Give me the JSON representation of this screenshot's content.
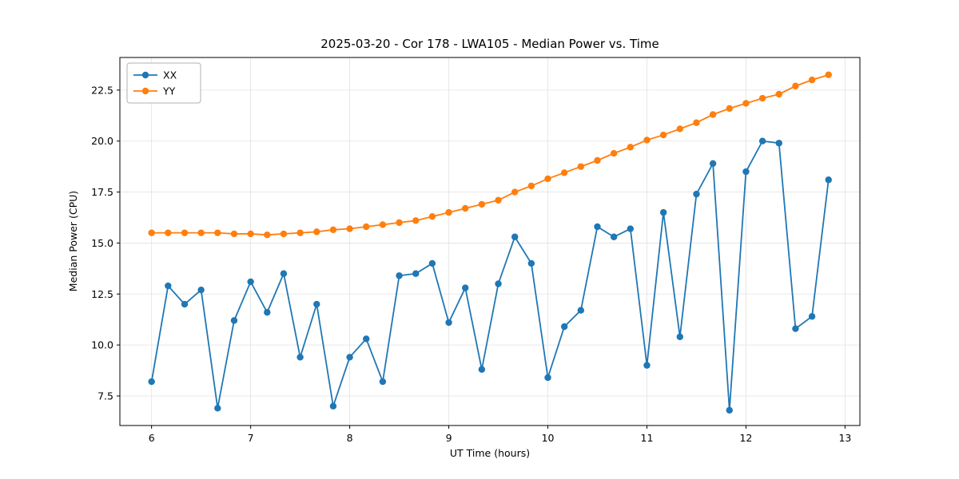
{
  "chart_data": {
    "type": "line",
    "title": "2025-03-20 - Cor 178 - LWA105 - Median Power vs. Time",
    "xlabel": "UT Time (hours)",
    "ylabel": "Median Power (CPU)",
    "xlim": [
      5.68,
      13.15
    ],
    "ylim": [
      6.05,
      24.1
    ],
    "xticks": [
      6,
      7,
      8,
      9,
      10,
      11,
      12,
      13
    ],
    "xtick_labels": [
      "6",
      "7",
      "8",
      "9",
      "10",
      "11",
      "12",
      "13"
    ],
    "yticks": [
      7.5,
      10.0,
      12.5,
      15.0,
      17.5,
      20.0,
      22.5
    ],
    "ytick_labels": [
      "7.5",
      "10.0",
      "12.5",
      "15.0",
      "17.5",
      "20.0",
      "22.5"
    ],
    "grid": true,
    "legend_position": "upper-left",
    "marker": "circle",
    "x": [
      6.0,
      6.1667,
      6.3333,
      6.5,
      6.6667,
      6.8333,
      7.0,
      7.1667,
      7.3333,
      7.5,
      7.6667,
      7.8333,
      8.0,
      8.1667,
      8.3333,
      8.5,
      8.6667,
      8.8333,
      9.0,
      9.1667,
      9.3333,
      9.5,
      9.6667,
      9.8333,
      10.0,
      10.1667,
      10.3333,
      10.5,
      10.6667,
      10.8333,
      11.0,
      11.1667,
      11.3333,
      11.5,
      11.6667,
      11.8333,
      12.0,
      12.1667,
      12.3333,
      12.5,
      12.6667,
      12.8333
    ],
    "series": [
      {
        "name": "XX",
        "color": "#1f77b4",
        "values": [
          8.2,
          12.9,
          12.0,
          12.7,
          6.9,
          11.2,
          13.1,
          11.6,
          13.5,
          9.4,
          12.0,
          7.0,
          9.4,
          10.3,
          8.2,
          13.4,
          13.5,
          14.0,
          11.1,
          12.8,
          8.8,
          13.0,
          15.3,
          14.0,
          8.4,
          10.9,
          11.7,
          15.8,
          15.3,
          15.7,
          9.0,
          16.5,
          10.4,
          17.4,
          18.9,
          6.8,
          18.5,
          20.0,
          19.9,
          10.8,
          11.4,
          18.1
        ]
      },
      {
        "name": "YY",
        "color": "#ff7f0e",
        "values": [
          15.5,
          15.5,
          15.5,
          15.5,
          15.5,
          15.45,
          15.45,
          15.4,
          15.45,
          15.5,
          15.55,
          15.65,
          15.7,
          15.8,
          15.9,
          16.0,
          16.1,
          16.3,
          16.5,
          16.7,
          16.9,
          17.1,
          17.5,
          17.8,
          18.15,
          18.45,
          18.75,
          19.05,
          19.4,
          19.7,
          20.05,
          20.3,
          20.6,
          20.9,
          21.3,
          21.6,
          21.85,
          22.1,
          22.3,
          22.7,
          23.0,
          23.25
        ]
      }
    ]
  }
}
